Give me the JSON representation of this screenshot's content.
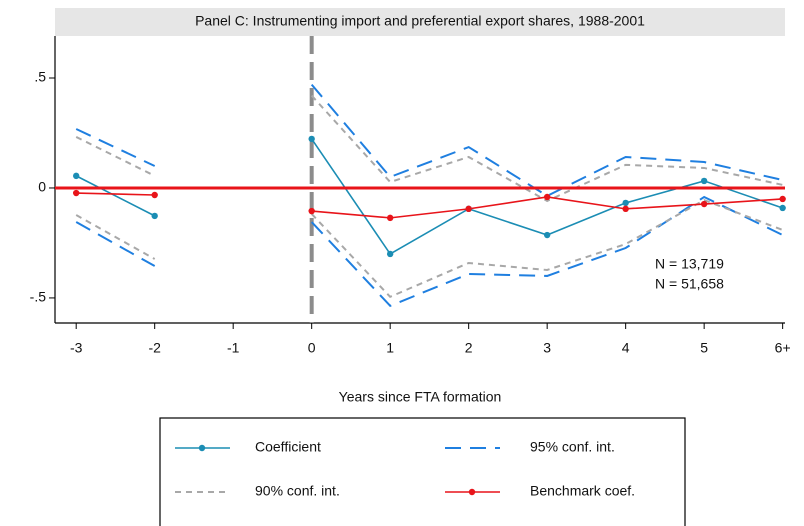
{
  "chart_data": {
    "type": "line",
    "title": "Panel C: Instrumenting import and preferential export shares, 1988-2001",
    "x_label": "Years since FTA formation",
    "x": [
      -3,
      -2,
      -1,
      0,
      1,
      2,
      3,
      4,
      5,
      6
    ],
    "xlim": [
      -3.27,
      6.03
    ],
    "xticks": [
      -3,
      -2,
      -1,
      0,
      1,
      2,
      3,
      4,
      5,
      {
        "value": 6,
        "label": "6+"
      }
    ],
    "ylim": [
      -0.614,
      0.691
    ],
    "yticks": [
      {
        "value": -0.5,
        "label": "-.5"
      },
      0,
      {
        "value": 0.5,
        "label": ".5"
      }
    ],
    "reference_line": {
      "y": 0,
      "color": "#e8141a"
    },
    "event_line": {
      "x": 0,
      "color": "#8c8c8c"
    },
    "series": [
      {
        "name": "Coefficient",
        "color": "#1b8db4",
        "markers": true,
        "values": [
          0.055,
          -0.127,
          null,
          0.223,
          -0.3,
          -0.095,
          -0.214,
          -0.068,
          0.032,
          -0.091
        ]
      },
      {
        "name": "95% conf. int.",
        "color": "#1f7fe0",
        "dash": "16 9",
        "values": [
          0.268,
          0.1,
          null,
          0.47,
          0.05,
          0.186,
          -0.036,
          0.141,
          0.118,
          0.036
        ],
        "lower": [
          -0.155,
          -0.355,
          null,
          -0.155,
          -0.536,
          -0.391,
          -0.4,
          -0.273,
          -0.041,
          -0.214
        ]
      },
      {
        "name": "90% conf. int.",
        "color": "#a8a8a8",
        "dash": "6 5",
        "values": [
          0.232,
          0.055,
          null,
          0.42,
          0.027,
          0.141,
          -0.059,
          0.105,
          0.091,
          0.014
        ],
        "lower": [
          -0.123,
          -0.323,
          null,
          -0.118,
          -0.495,
          -0.341,
          -0.373,
          -0.255,
          -0.055,
          -0.191
        ]
      },
      {
        "name": "Benchmark coef.",
        "color": "#e8141a",
        "markers": true,
        "values": [
          -0.023,
          -0.032,
          null,
          -0.105,
          -0.136,
          -0.095,
          -0.041,
          -0.095,
          -0.073,
          -0.05
        ]
      }
    ],
    "annotations": [
      {
        "text": "N = 13,719",
        "color": "#1b8db4"
      },
      {
        "text": "N = 51,658",
        "color": "#e8141a"
      }
    ]
  }
}
